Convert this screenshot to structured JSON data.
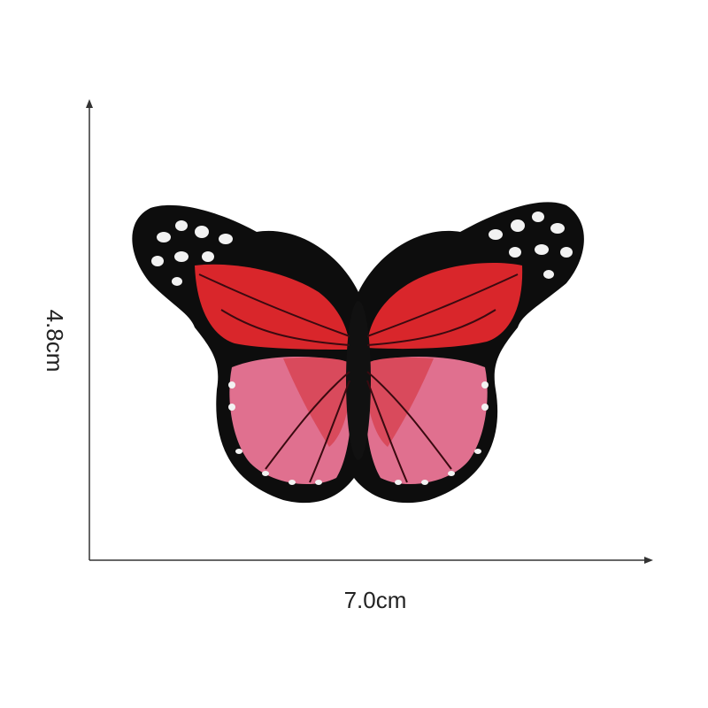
{
  "dimensions": {
    "height": "4.8cm",
    "width": "7.0cm"
  }
}
